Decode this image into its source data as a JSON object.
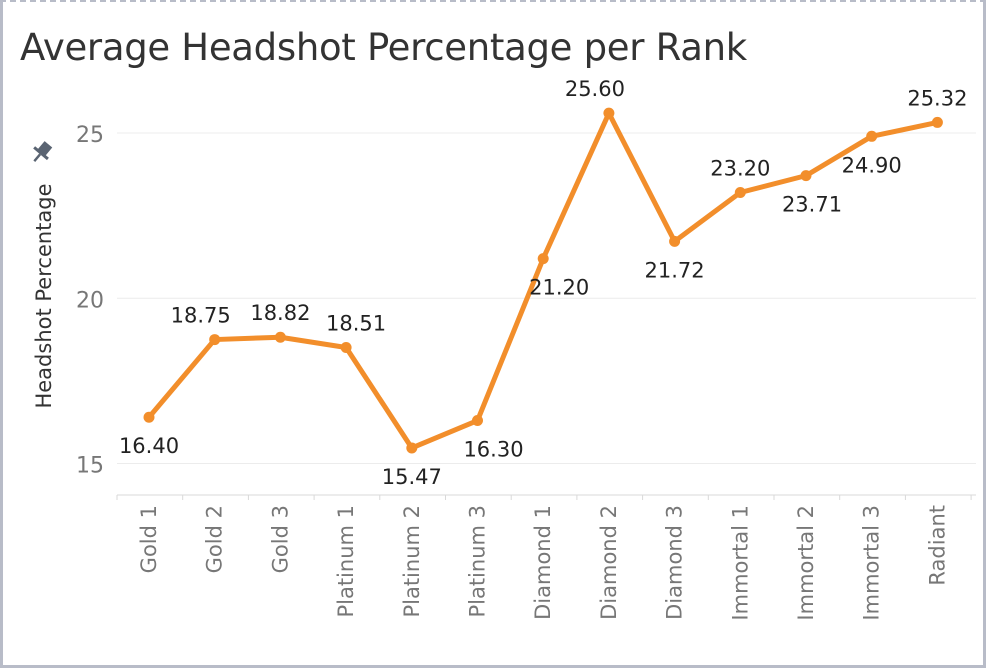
{
  "chart_data": {
    "type": "line",
    "title": "Average Headshot Percentage per Rank",
    "xlabel": "",
    "ylabel": "Headshot Percentage",
    "categories": [
      "Gold 1",
      "Gold 2",
      "Gold 3",
      "Platinum 1",
      "Platinum 2",
      "Platinum 3",
      "Diamond 1",
      "Diamond 2",
      "Diamond 3",
      "Immortal 1",
      "Immortal 2",
      "Immortal 3",
      "Radiant"
    ],
    "values": [
      16.4,
      18.75,
      18.82,
      18.51,
      15.47,
      16.3,
      21.2,
      25.6,
      21.72,
      23.2,
      23.71,
      24.9,
      25.32
    ],
    "labels": [
      "16.40",
      "18.75",
      "18.82",
      "18.51",
      "15.47",
      "16.30",
      "21.20",
      "25.60",
      "21.72",
      "23.20",
      "23.71",
      "24.90",
      "25.32"
    ],
    "yticks": [
      15,
      20,
      25
    ],
    "ylim": [
      14.0,
      26.0
    ],
    "grid": true,
    "line_color": "#f28e2b",
    "legend": "none",
    "pin_icon": "pin-icon"
  }
}
